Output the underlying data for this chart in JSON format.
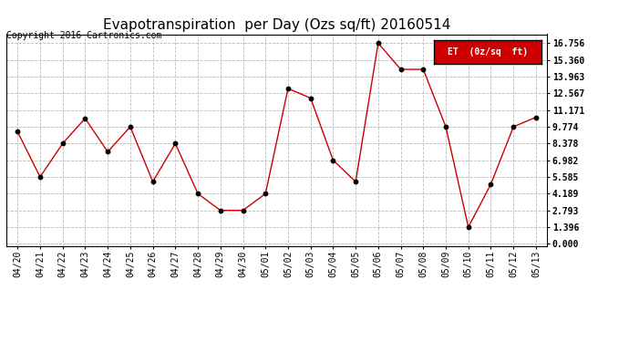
{
  "title": "Evapotranspiration  per Day (Ozs sq/ft) 20160514",
  "copyright": "Copyright 2016 Cartronics.com",
  "legend_label": "ET  (0z/sq  ft)",
  "legend_bg": "#cc0000",
  "legend_text_color": "#ffffff",
  "x_labels": [
    "04/20",
    "04/21",
    "04/22",
    "04/23",
    "04/24",
    "04/25",
    "04/26",
    "04/27",
    "04/28",
    "04/29",
    "04/30",
    "05/01",
    "05/02",
    "05/03",
    "05/04",
    "05/05",
    "05/06",
    "05/07",
    "05/08",
    "05/09",
    "05/10",
    "05/11",
    "05/12",
    "05/13"
  ],
  "y_values": [
    9.357,
    5.585,
    8.378,
    10.47,
    7.681,
    9.774,
    5.189,
    8.378,
    4.189,
    2.793,
    2.793,
    4.189,
    12.964,
    12.169,
    6.982,
    5.189,
    16.756,
    14.563,
    14.563,
    9.774,
    1.396,
    4.984,
    9.774,
    10.57
  ],
  "line_color": "#cc0000",
  "marker_color": "#000000",
  "bg_color": "#ffffff",
  "grid_color": "#bbbbbb",
  "y_ticks": [
    0.0,
    1.396,
    2.793,
    4.189,
    5.585,
    6.982,
    8.378,
    9.774,
    11.171,
    12.567,
    13.963,
    15.36,
    16.756
  ],
  "ylim": [
    -0.2,
    17.5
  ],
  "title_fontsize": 11,
  "copyright_fontsize": 7,
  "tick_fontsize": 7,
  "legend_fontsize": 7
}
